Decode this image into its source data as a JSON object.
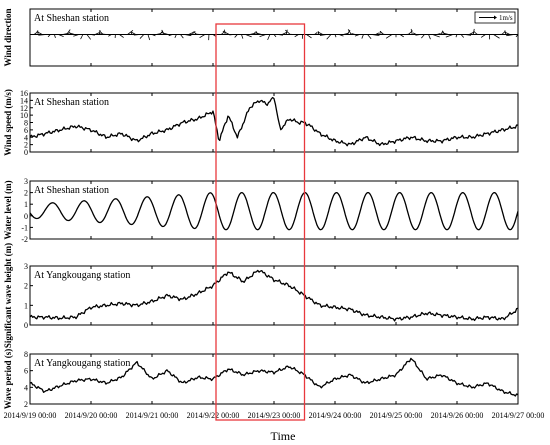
{
  "xlabel": "Time",
  "x_ticks": [
    "2014/9/19 00:00",
    "2014/9/20 00:00",
    "2014/9/21 00:00",
    "2014/9/22 00:00",
    "2014/9/23 00:00",
    "2014/9/24 00:00",
    "2014/9/25 00:00",
    "2014/9/26 00:00",
    "2014/9/27 00:00"
  ],
  "highlight": {
    "start": "2014/9/22 00:00",
    "end": "2014/9/23 12:00",
    "color": "#e8383d"
  },
  "chart_data": [
    {
      "type": "line",
      "title": "At Sheshan station",
      "ylabel": "Wind direction",
      "legend": "1m/s",
      "x_days": [
        3.0,
        3.1,
        3.2,
        3.3,
        3.4,
        3.5,
        3.6,
        3.7,
        3.8,
        3.9,
        4.0,
        4.1,
        4.2,
        4.3,
        4.4,
        4.5
      ],
      "y_ticks": [],
      "note": "vector arrows along a horizontal baseline"
    },
    {
      "type": "line",
      "title": "At Sheshan station",
      "ylabel": "Wind speed (m/s)",
      "ylim": [
        0,
        16
      ],
      "y_ticks": [
        "0",
        "2",
        "4",
        "6",
        "8",
        "10",
        "12",
        "14",
        "16"
      ],
      "x_days": [
        0,
        0.25,
        0.5,
        0.75,
        1.0,
        1.25,
        1.5,
        1.75,
        2.0,
        2.25,
        2.5,
        2.75,
        3.0,
        3.1,
        3.25,
        3.4,
        3.6,
        3.75,
        3.9,
        4.0,
        4.1,
        4.25,
        4.4,
        4.5,
        4.6,
        4.75,
        5.0,
        5.25,
        5.5,
        5.75,
        6.0,
        6.25,
        6.5,
        6.75,
        7.0,
        7.25,
        7.5,
        7.75,
        8.0
      ],
      "values": [
        4,
        5,
        6,
        7,
        6,
        4,
        5,
        3,
        5,
        6,
        8,
        9,
        11,
        3,
        10,
        4,
        12,
        14,
        13,
        15,
        6,
        9,
        8,
        8,
        7,
        5,
        3,
        2,
        4,
        2,
        3,
        4,
        3,
        3,
        4,
        4,
        5,
        6,
        7
      ]
    },
    {
      "type": "line",
      "title": "At Sheshan station",
      "ylabel": "Water level (m)",
      "ylim": [
        -2,
        3
      ],
      "y_ticks": [
        "-2",
        "-1",
        "0",
        "1",
        "2",
        "3"
      ],
      "amplitude_start": 0.6,
      "amplitude_peak": 1.6,
      "period_days": 0.5175
    },
    {
      "type": "line",
      "title": "At Yangkougang station",
      "ylabel": "Significant wave height (m)",
      "ylim": [
        0,
        3
      ],
      "y_ticks": [
        "0",
        "1",
        "2",
        "3"
      ],
      "x_days": [
        0,
        0.25,
        0.5,
        0.75,
        1.0,
        1.25,
        1.5,
        1.75,
        2.0,
        2.25,
        2.5,
        2.75,
        3.0,
        3.25,
        3.5,
        3.75,
        4.0,
        4.25,
        4.5,
        4.75,
        5.0,
        5.25,
        5.5,
        5.75,
        6.0,
        6.25,
        6.5,
        6.75,
        7.0,
        7.25,
        7.5,
        7.75,
        8.0
      ],
      "values": [
        0.4,
        0.4,
        0.35,
        0.4,
        0.9,
        1.0,
        1.1,
        1.0,
        1.2,
        1.5,
        1.3,
        1.6,
        2.0,
        2.7,
        2.2,
        2.8,
        2.3,
        2.0,
        1.5,
        1.0,
        0.9,
        0.8,
        0.5,
        0.4,
        0.3,
        0.4,
        0.6,
        0.5,
        0.4,
        0.3,
        0.4,
        0.3,
        0.8
      ]
    },
    {
      "type": "line",
      "title": "At Yangkougang station",
      "ylabel": "Wave period (s)",
      "ylim": [
        2,
        8
      ],
      "y_ticks": [
        "2",
        "4",
        "6",
        "8"
      ],
      "x_days": [
        0,
        0.25,
        0.5,
        0.75,
        1.0,
        1.25,
        1.5,
        1.75,
        2.0,
        2.25,
        2.5,
        2.75,
        3.0,
        3.25,
        3.5,
        3.75,
        4.0,
        4.25,
        4.5,
        4.75,
        5.0,
        5.25,
        5.5,
        5.75,
        6.0,
        6.25,
        6.5,
        6.75,
        7.0,
        7.25,
        7.5,
        7.75,
        8.0
      ],
      "values": [
        4.5,
        3.5,
        4.2,
        4.8,
        5.0,
        4.5,
        5.2,
        7.0,
        5.0,
        6.0,
        4.5,
        5.2,
        5.0,
        6.2,
        5.5,
        6.0,
        5.8,
        6.5,
        5.5,
        4.0,
        5.0,
        5.5,
        4.5,
        5.0,
        5.5,
        7.5,
        5.0,
        5.5,
        4.5,
        4.0,
        4.5,
        3.5,
        3.0
      ]
    }
  ]
}
